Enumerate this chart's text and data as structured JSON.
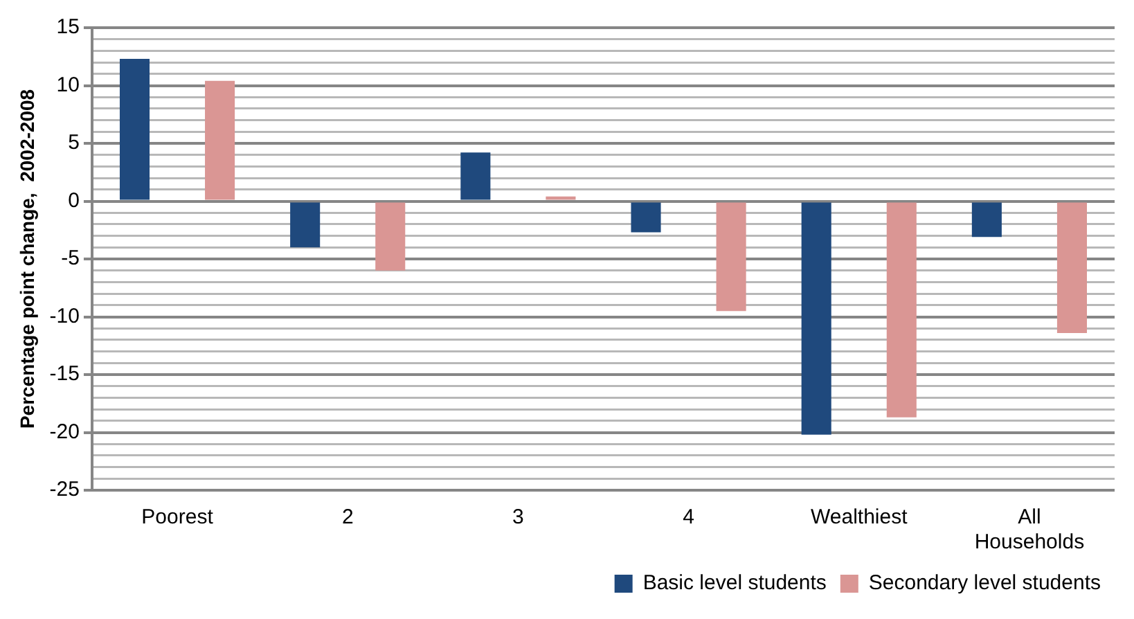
{
  "chart_data": {
    "type": "bar",
    "ylabel": "Percentage point change,  2002-2008",
    "categories": [
      "Poorest",
      "2",
      "3",
      "4",
      "Wealthiest",
      "All Households"
    ],
    "series": [
      {
        "name": "Basic level students",
        "color": "#1f497d",
        "values": [
          12.3,
          -4.0,
          4.2,
          -2.7,
          -20.2,
          -3.1
        ]
      },
      {
        "name": "Secondary level students",
        "color": "#da9694",
        "values": [
          10.4,
          -6.0,
          0.4,
          -9.5,
          -18.7,
          -11.4
        ]
      }
    ],
    "ylim": [
      -25,
      15
    ],
    "yticks": [
      -25,
      {
        "value": -24,
        "label": null
      },
      {
        "value": -23,
        "label": null
      },
      {
        "value": -22,
        "label": null
      },
      {
        "value": -21,
        "label": null
      },
      -20,
      {
        "value": -19,
        "label": null
      },
      {
        "value": -18,
        "label": null
      },
      {
        "value": -17,
        "label": null
      },
      {
        "value": -16,
        "label": null
      },
      -15,
      {
        "value": -14,
        "label": null
      },
      {
        "value": -13,
        "label": null
      },
      {
        "value": -12,
        "label": null
      },
      {
        "value": -11,
        "label": null
      },
      -10,
      {
        "value": -9,
        "label": null
      },
      {
        "value": -8,
        "label": null
      },
      {
        "value": -7,
        "label": null
      },
      {
        "value": -6,
        "label": null
      },
      -5,
      {
        "value": -4,
        "label": null
      },
      {
        "value": -3,
        "label": null
      },
      {
        "value": -2,
        "label": null
      },
      {
        "value": -1,
        "label": null
      },
      0,
      {
        "value": 1,
        "label": null
      },
      {
        "value": 2,
        "label": null
      },
      {
        "value": 3,
        "label": null
      },
      {
        "value": 4,
        "label": null
      },
      5,
      {
        "value": 6,
        "label": null
      },
      {
        "value": 7,
        "label": null
      },
      {
        "value": 8,
        "label": null
      },
      {
        "value": 9,
        "label": null
      },
      10,
      {
        "value": 11,
        "label": null
      },
      {
        "value": 12,
        "label": null
      },
      {
        "value": 13,
        "label": null
      },
      {
        "value": 14,
        "label": null
      },
      15
    ],
    "grid": "y",
    "legend": "bottom"
  }
}
